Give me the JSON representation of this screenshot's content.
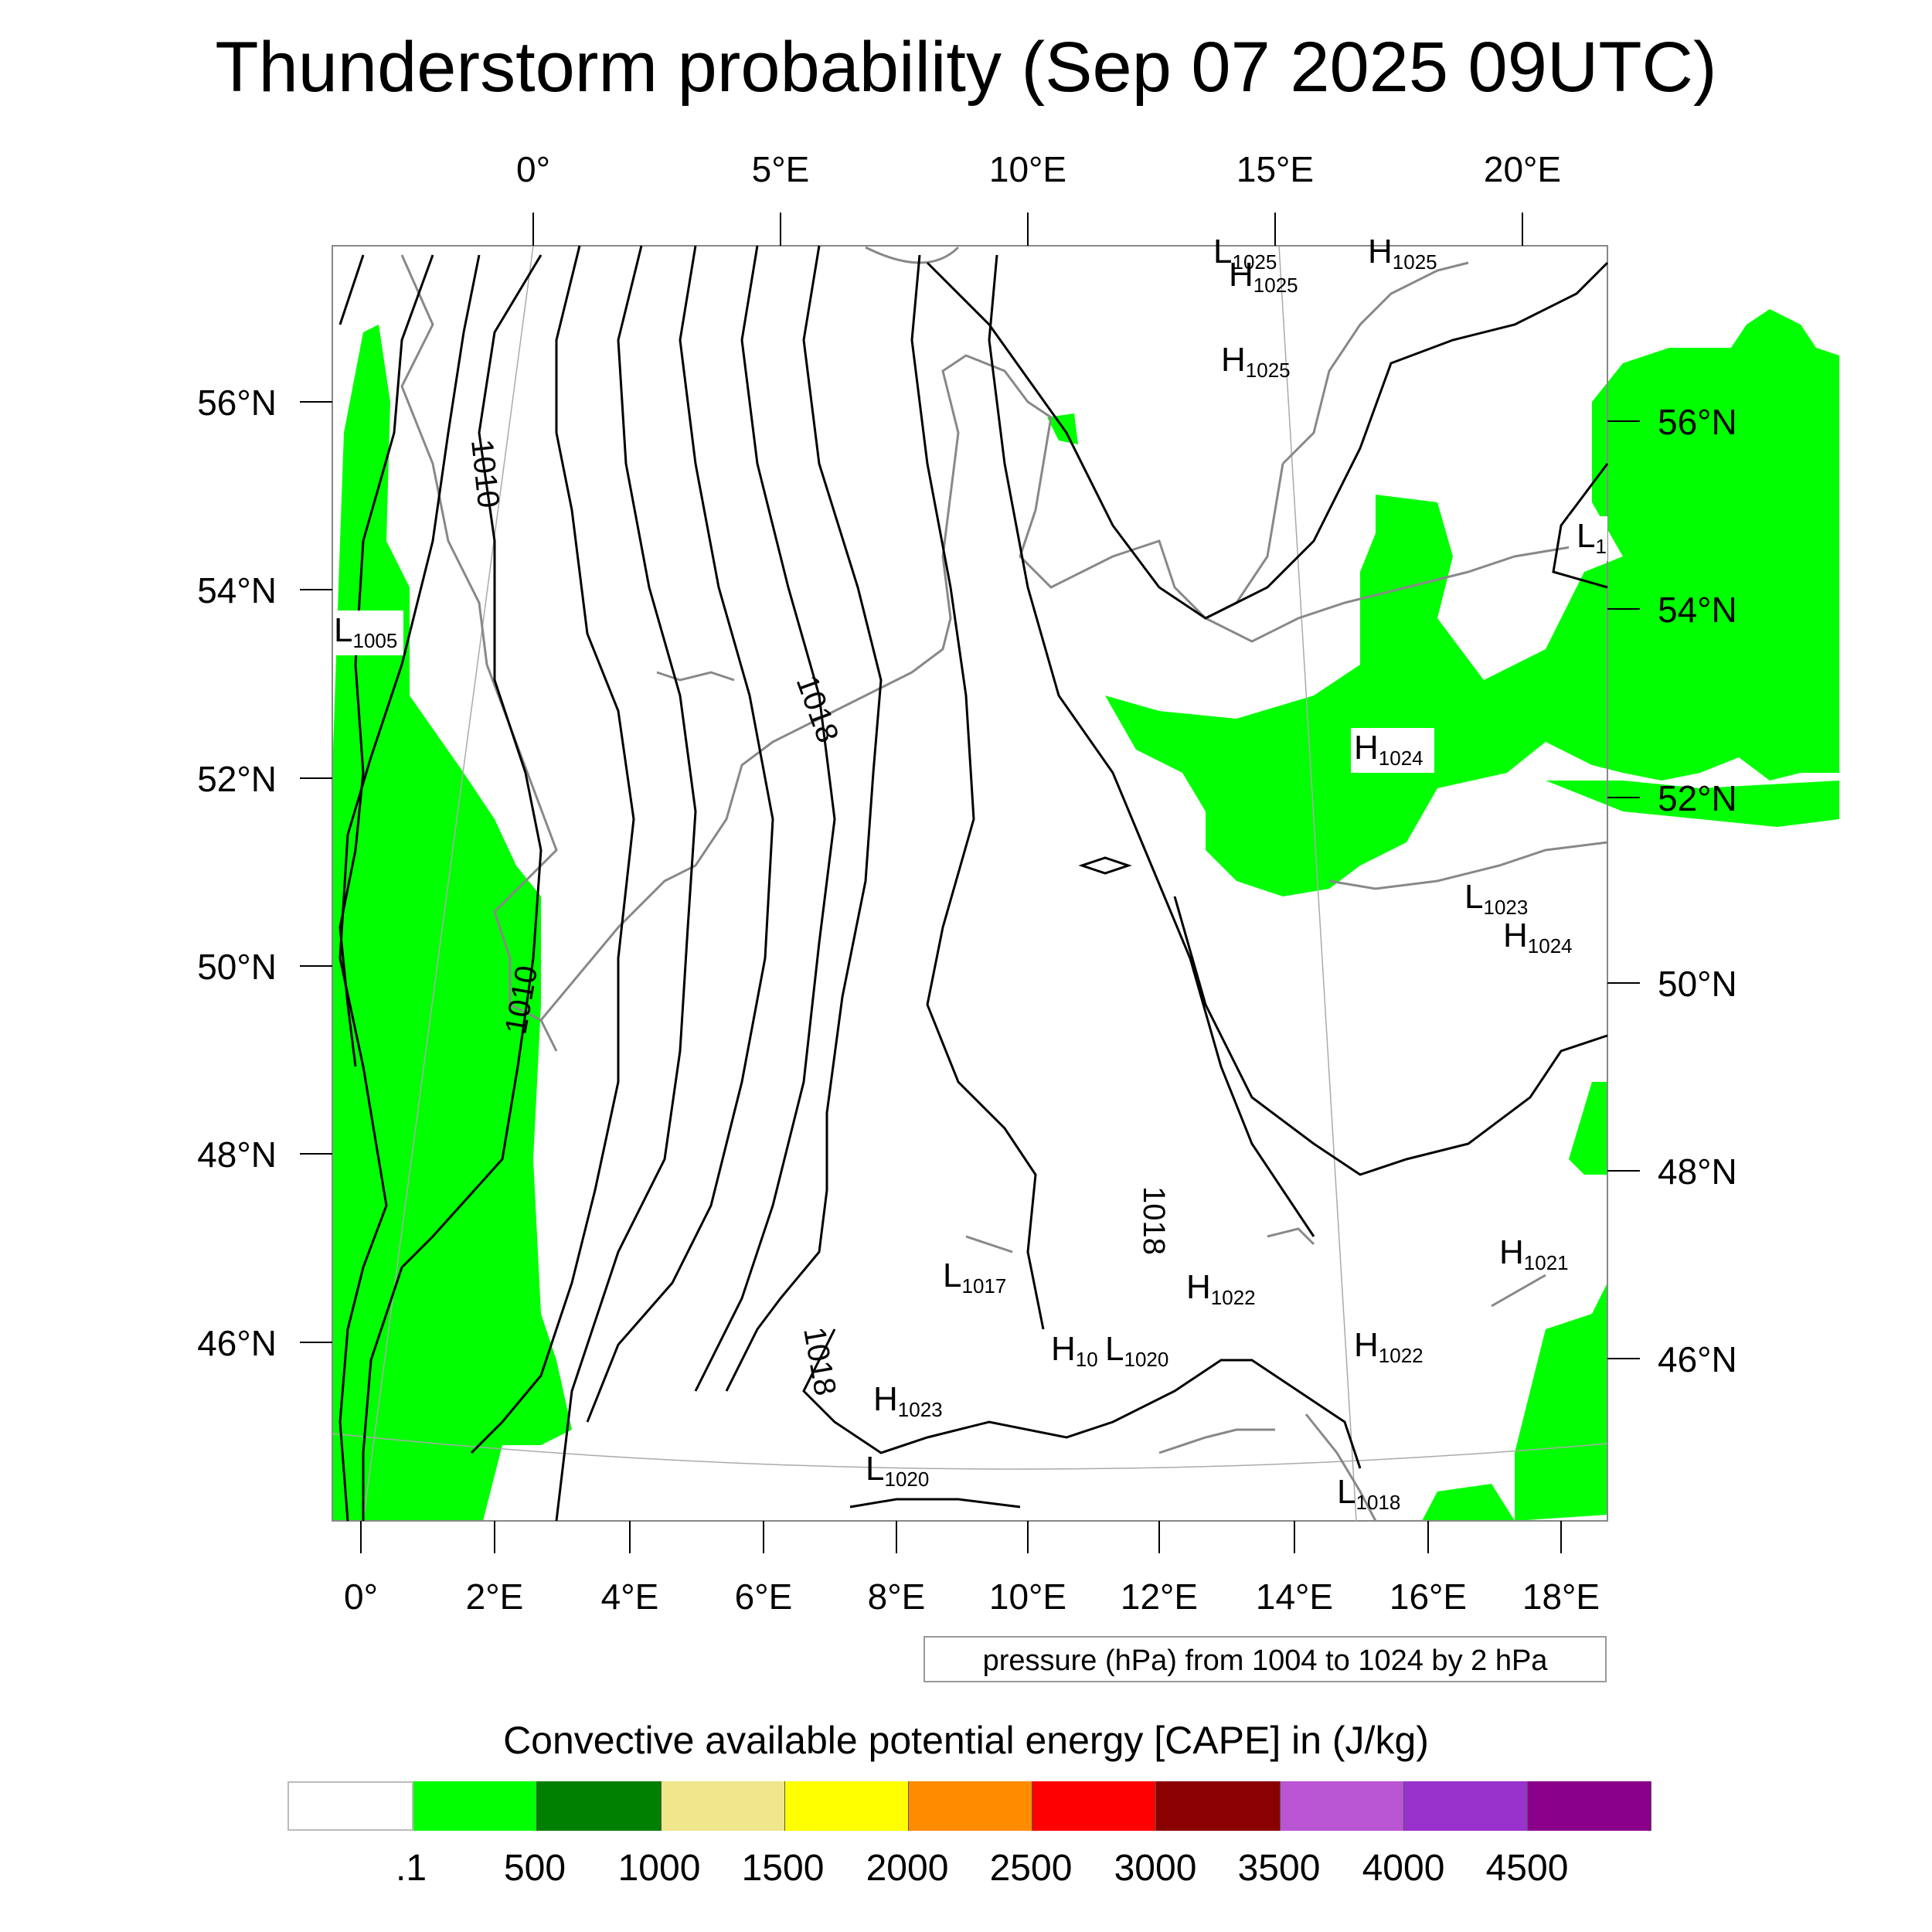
{
  "title": "Thunderstorm probability (Sep 07 2025 09UTC)",
  "top_lon_labels": [
    "0°",
    "5°E",
    "10°E",
    "15°E",
    "20°E"
  ],
  "bottom_lon_labels": [
    "0°",
    "2°E",
    "4°E",
    "6°E",
    "8°E",
    "10°E",
    "12°E",
    "14°E",
    "16°E",
    "18°E"
  ],
  "left_lat_labels": [
    "56°N",
    "54°N",
    "52°N",
    "50°N",
    "48°N",
    "46°N"
  ],
  "right_lat_labels": [
    "56°N",
    "54°N",
    "52°N",
    "50°N",
    "48°N",
    "46°N"
  ],
  "contour_labels": [
    "1010",
    "1010",
    "1018",
    "1018",
    "1018"
  ],
  "pressure_centers": [
    {
      "type": "L",
      "value": "1025"
    },
    {
      "type": "H",
      "value": "1025"
    },
    {
      "type": "H",
      "value": "1025"
    },
    {
      "type": "H",
      "value": "1025"
    },
    {
      "type": "L",
      "value": "1005"
    },
    {
      "type": "L",
      "value": "1"
    },
    {
      "type": "H",
      "value": "1024"
    },
    {
      "type": "L",
      "value": "1023"
    },
    {
      "type": "H",
      "value": "1024"
    },
    {
      "type": "H",
      "value": "1021"
    },
    {
      "type": "L",
      "value": "1017"
    },
    {
      "type": "H",
      "value": "1022"
    },
    {
      "type": "H",
      "value": "10"
    },
    {
      "type": "L",
      "value": "1020"
    },
    {
      "type": "H",
      "value": "1022"
    },
    {
      "type": "H",
      "value": "1023"
    },
    {
      "type": "L",
      "value": "1020"
    },
    {
      "type": "L",
      "value": "1018"
    }
  ],
  "contour_note": "pressure (hPa) from 1004 to 1024 by 2 hPa",
  "colorbar": {
    "title": "Convective available potential energy [CAPE] in (J/kg)",
    "colors": [
      "#ffffff",
      "#00ff00",
      "#008000",
      "#f0e68c",
      "#ffff00",
      "#ff8c00",
      "#ff0000",
      "#8b0000",
      "#ba55d3",
      "#9932cc",
      "#8b008b"
    ],
    "labels": [
      ".1",
      "500",
      "1000",
      "1500",
      "2000",
      "2500",
      "3000",
      "3500",
      "4000",
      "4500"
    ]
  }
}
